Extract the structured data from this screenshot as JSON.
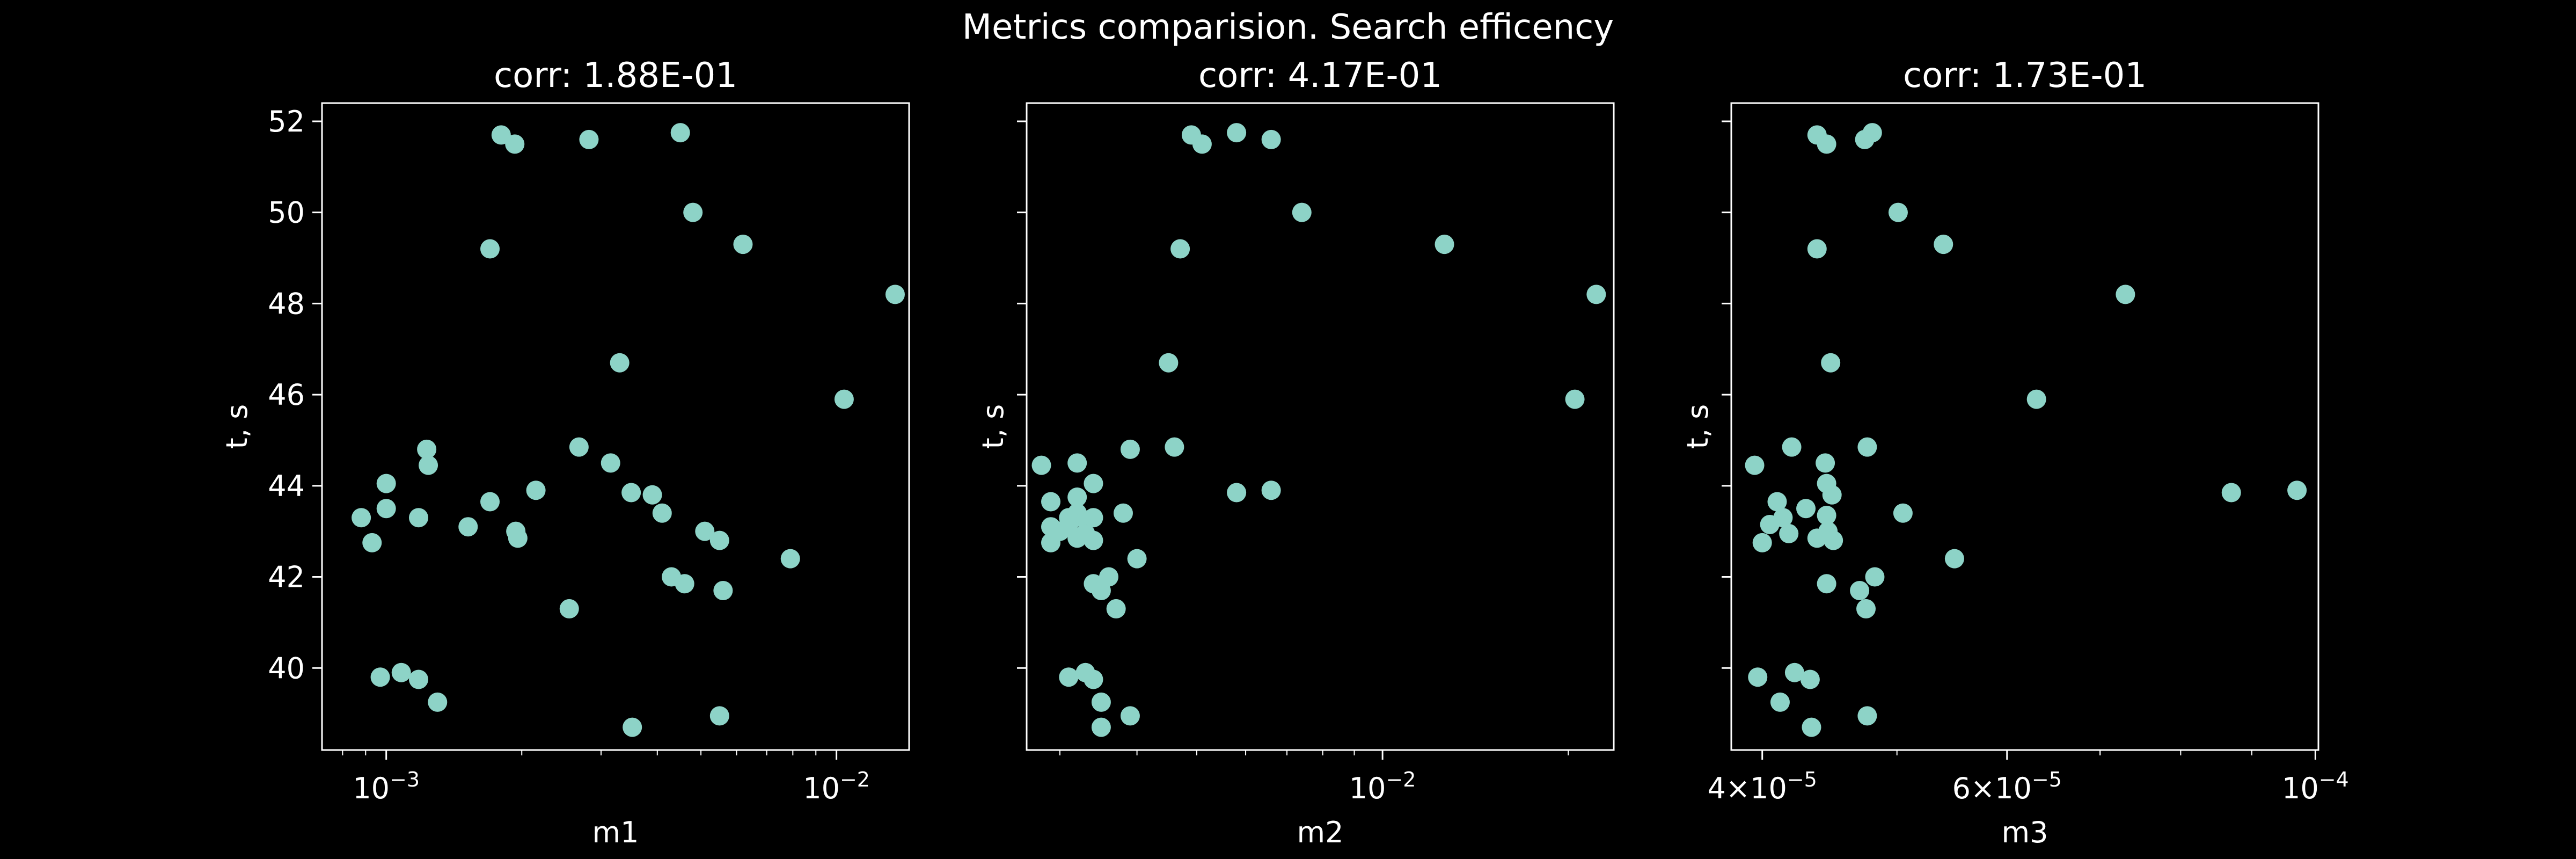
{
  "figure": {
    "title": "Metrics comparision. Search efficency",
    "background": "#000000",
    "foreground": "#ffffff",
    "marker_color": "#8dd3c7"
  },
  "chart_data": [
    {
      "type": "scatter",
      "title": "corr: 1.88E-01",
      "xlabel": "m1",
      "ylabel": "t, s",
      "xscale": "log",
      "xlim": [
        0.00072,
        0.0145
      ],
      "ylim": [
        38.2,
        52.4
      ],
      "xticks": [
        {
          "value": 0.001,
          "label": "10^-3"
        },
        {
          "value": 0.01,
          "label": "10^-2"
        }
      ],
      "yticks": [
        40,
        42,
        44,
        46,
        48,
        50,
        52
      ],
      "show_ytick_labels": true,
      "grid": false,
      "points": [
        [
          0.00088,
          43.3
        ],
        [
          0.00093,
          42.75
        ],
        [
          0.00097,
          39.8
        ],
        [
          0.001,
          44.05
        ],
        [
          0.001,
          43.5
        ],
        [
          0.00108,
          39.9
        ],
        [
          0.00118,
          43.3
        ],
        [
          0.00118,
          39.75
        ],
        [
          0.00123,
          44.8
        ],
        [
          0.00124,
          44.45
        ],
        [
          0.0013,
          39.25
        ],
        [
          0.00152,
          43.1
        ],
        [
          0.0017,
          49.2
        ],
        [
          0.0017,
          43.65
        ],
        [
          0.0018,
          51.7
        ],
        [
          0.00193,
          51.5
        ],
        [
          0.00194,
          43.0
        ],
        [
          0.00196,
          42.85
        ],
        [
          0.00215,
          43.9
        ],
        [
          0.00255,
          41.3
        ],
        [
          0.00268,
          44.85
        ],
        [
          0.00282,
          51.6
        ],
        [
          0.00315,
          44.5
        ],
        [
          0.0033,
          46.7
        ],
        [
          0.0035,
          43.85
        ],
        [
          0.00352,
          38.7
        ],
        [
          0.0039,
          43.8
        ],
        [
          0.0041,
          43.4
        ],
        [
          0.0043,
          42.0
        ],
        [
          0.0045,
          51.75
        ],
        [
          0.0046,
          41.85
        ],
        [
          0.0048,
          50.0
        ],
        [
          0.0051,
          43.0
        ],
        [
          0.0055,
          42.8
        ],
        [
          0.0055,
          38.95
        ],
        [
          0.0056,
          41.7
        ],
        [
          0.0062,
          49.3
        ],
        [
          0.0079,
          42.4
        ],
        [
          0.0104,
          45.9
        ],
        [
          0.0135,
          48.2
        ]
      ]
    },
    {
      "type": "scatter",
      "title": "corr: 4.17E-01",
      "xlabel": "m2",
      "ylabel": "t, s",
      "xscale": "log",
      "xlim": [
        0.00265,
        0.0237
      ],
      "ylim": [
        38.2,
        52.4
      ],
      "xticks": [
        {
          "value": 0.01,
          "label": "10^-2"
        }
      ],
      "yticks": [
        40,
        42,
        44,
        46,
        48,
        50,
        52
      ],
      "show_ytick_labels": false,
      "grid": false,
      "points": [
        [
          0.0028,
          44.45
        ],
        [
          0.0029,
          43.65
        ],
        [
          0.0029,
          43.1
        ],
        [
          0.0029,
          42.75
        ],
        [
          0.003,
          43.0
        ],
        [
          0.0031,
          43.3
        ],
        [
          0.0031,
          43.15
        ],
        [
          0.0031,
          39.8
        ],
        [
          0.0032,
          44.5
        ],
        [
          0.0032,
          43.75
        ],
        [
          0.0032,
          43.4
        ],
        [
          0.0032,
          42.85
        ],
        [
          0.0033,
          39.9
        ],
        [
          0.0033,
          43.25
        ],
        [
          0.0033,
          42.95
        ],
        [
          0.0034,
          44.05
        ],
        [
          0.0034,
          43.3
        ],
        [
          0.0034,
          42.8
        ],
        [
          0.0034,
          41.85
        ],
        [
          0.0034,
          39.75
        ],
        [
          0.0035,
          39.25
        ],
        [
          0.0035,
          38.7
        ],
        [
          0.0035,
          41.7
        ],
        [
          0.0036,
          42.0
        ],
        [
          0.0037,
          41.3
        ],
        [
          0.0038,
          43.4
        ],
        [
          0.0039,
          44.8
        ],
        [
          0.0039,
          38.95
        ],
        [
          0.004,
          42.4
        ],
        [
          0.0045,
          46.7
        ],
        [
          0.0046,
          44.85
        ],
        [
          0.0047,
          49.2
        ],
        [
          0.0049,
          51.7
        ],
        [
          0.0051,
          51.5
        ],
        [
          0.0058,
          51.75
        ],
        [
          0.0058,
          43.85
        ],
        [
          0.0066,
          51.6
        ],
        [
          0.0066,
          43.9
        ],
        [
          0.0074,
          50.0
        ],
        [
          0.0126,
          49.3
        ],
        [
          0.0205,
          45.9
        ],
        [
          0.0222,
          48.2
        ]
      ]
    },
    {
      "type": "scatter",
      "title": "corr: 1.73E-01",
      "xlabel": "m3",
      "ylabel": "t, s",
      "xscale": "log",
      "xlim": [
        3.8e-05,
        0.0001005
      ],
      "ylim": [
        38.2,
        52.4
      ],
      "xticks": [
        {
          "value": 4e-05,
          "label": "4×10^-5"
        },
        {
          "value": 6e-05,
          "label": "6×10^-5"
        },
        {
          "value": 0.0001,
          "label": "10^-4"
        }
      ],
      "minor_xticks": [
        5e-05,
        7e-05,
        8e-05,
        9e-05
      ],
      "yticks": [
        40,
        42,
        44,
        46,
        48,
        50,
        52
      ],
      "show_ytick_labels": false,
      "grid": false,
      "points": [
        [
          3.95e-05,
          44.45
        ],
        [
          3.97e-05,
          39.8
        ],
        [
          4e-05,
          42.75
        ],
        [
          4.05e-05,
          43.15
        ],
        [
          4.1e-05,
          43.65
        ],
        [
          4.12e-05,
          39.25
        ],
        [
          4.14e-05,
          43.3
        ],
        [
          4.18e-05,
          42.95
        ],
        [
          4.2e-05,
          44.85
        ],
        [
          4.22e-05,
          39.9
        ],
        [
          4.3e-05,
          43.5
        ],
        [
          4.33e-05,
          39.75
        ],
        [
          4.34e-05,
          38.7
        ],
        [
          4.38e-05,
          51.7
        ],
        [
          4.38e-05,
          49.2
        ],
        [
          4.38e-05,
          42.85
        ],
        [
          4.44e-05,
          44.5
        ],
        [
          4.45e-05,
          51.5
        ],
        [
          4.45e-05,
          44.05
        ],
        [
          4.45e-05,
          43.35
        ],
        [
          4.45e-05,
          41.85
        ],
        [
          4.46e-05,
          43.0
        ],
        [
          4.48e-05,
          46.7
        ],
        [
          4.49e-05,
          43.8
        ],
        [
          4.5e-05,
          42.8
        ],
        [
          4.7e-05,
          41.7
        ],
        [
          4.74e-05,
          51.6
        ],
        [
          4.75e-05,
          41.3
        ],
        [
          4.76e-05,
          44.85
        ],
        [
          4.76e-05,
          38.95
        ],
        [
          4.8e-05,
          51.75
        ],
        [
          4.82e-05,
          42.0
        ],
        [
          5.01e-05,
          50.0
        ],
        [
          5.05e-05,
          43.4
        ],
        [
          5.4e-05,
          49.3
        ],
        [
          5.5e-05,
          42.4
        ],
        [
          6.3e-05,
          45.9
        ],
        [
          7.3e-05,
          48.2
        ],
        [
          8.7e-05,
          43.85
        ],
        [
          9.7e-05,
          43.9
        ]
      ]
    }
  ]
}
